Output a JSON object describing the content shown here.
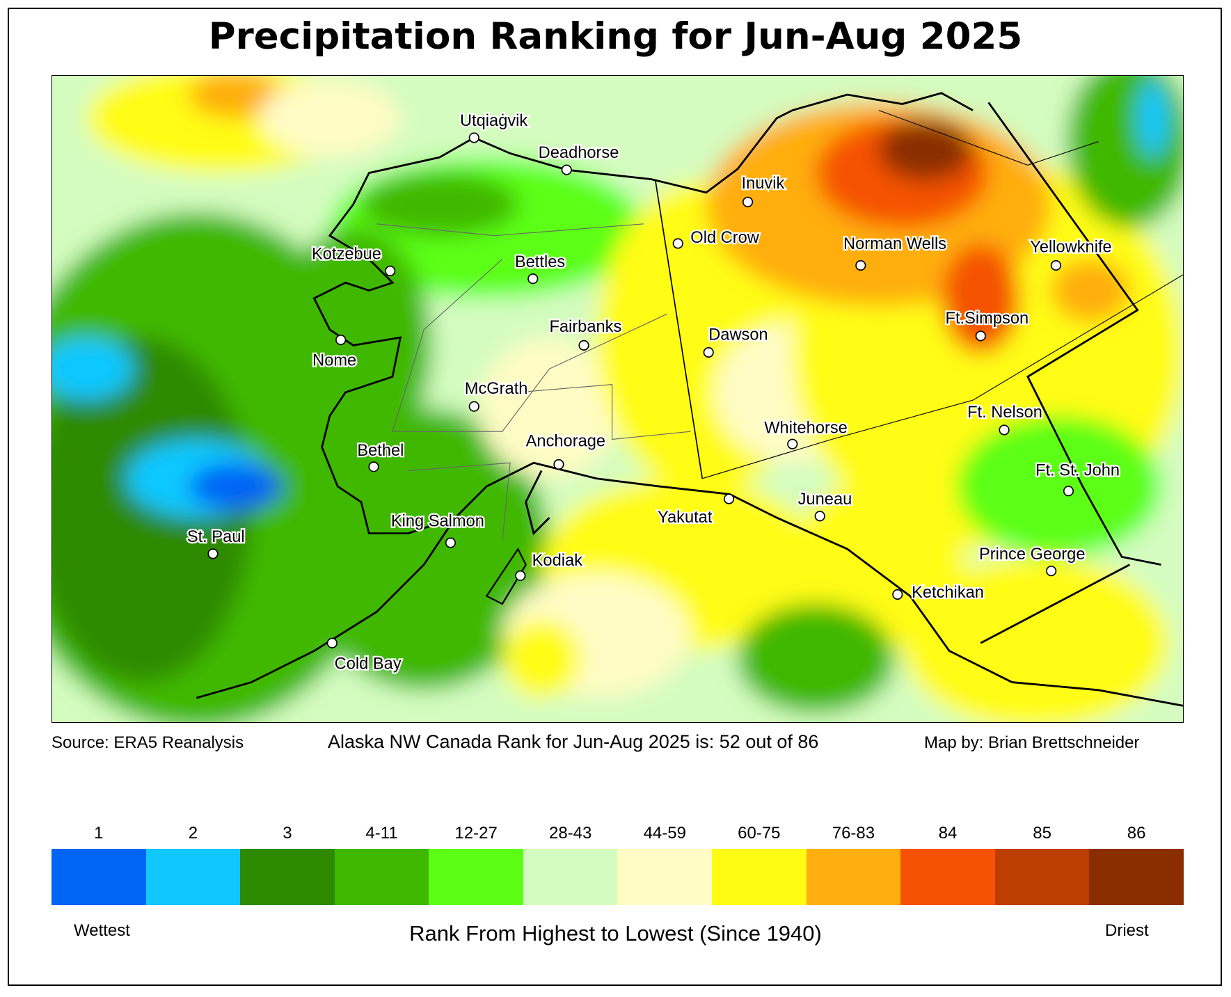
{
  "title": "Precipitation Ranking for Jun-Aug 2025",
  "footer": {
    "source": "Source: ERA5 Reanalysis",
    "rank": "Alaska NW Canada Rank for Jun-Aug 2025 is: 52 out of 86",
    "credit": "Map by: Brian Brettschneider"
  },
  "legend": {
    "categories": [
      {
        "label": "1",
        "color": "#0064f5"
      },
      {
        "label": "2",
        "color": "#10c8ff"
      },
      {
        "label": "3",
        "color": "#2e8a00"
      },
      {
        "label": "4-11",
        "color": "#40b800"
      },
      {
        "label": "12-27",
        "color": "#5cff14"
      },
      {
        "label": "28-43",
        "color": "#d4fcc0"
      },
      {
        "label": "44-59",
        "color": "#fefcc4"
      },
      {
        "label": "60-75",
        "color": "#fffc14"
      },
      {
        "label": "76-83",
        "color": "#ffae10"
      },
      {
        "label": "84",
        "color": "#f55205"
      },
      {
        "label": "85",
        "color": "#bc3e00"
      },
      {
        "label": "86",
        "color": "#8a2e00"
      }
    ],
    "wettest": "Wettest",
    "driest": "Driest",
    "axis_title": "Rank From Highest to Lowest (Since 1940)"
  },
  "cities": [
    "Utqiaġvik",
    "Deadhorse",
    "Inuvik",
    "Old Crow",
    "Norman Wells",
    "Yellowknife",
    "Kotzebue",
    "Bettles",
    "Fairbanks",
    "Dawson",
    "Ft.Simpson",
    "Nome",
    "McGrath",
    "Ft. Nelson",
    "Whitehorse",
    "Anchorage",
    "Bethel",
    "Ft. St. John",
    "Juneau",
    "Yakutat",
    "King Salmon",
    "St. Paul",
    "Kodiak",
    "Prince George",
    "Ketchikan",
    "Cold Bay"
  ]
}
